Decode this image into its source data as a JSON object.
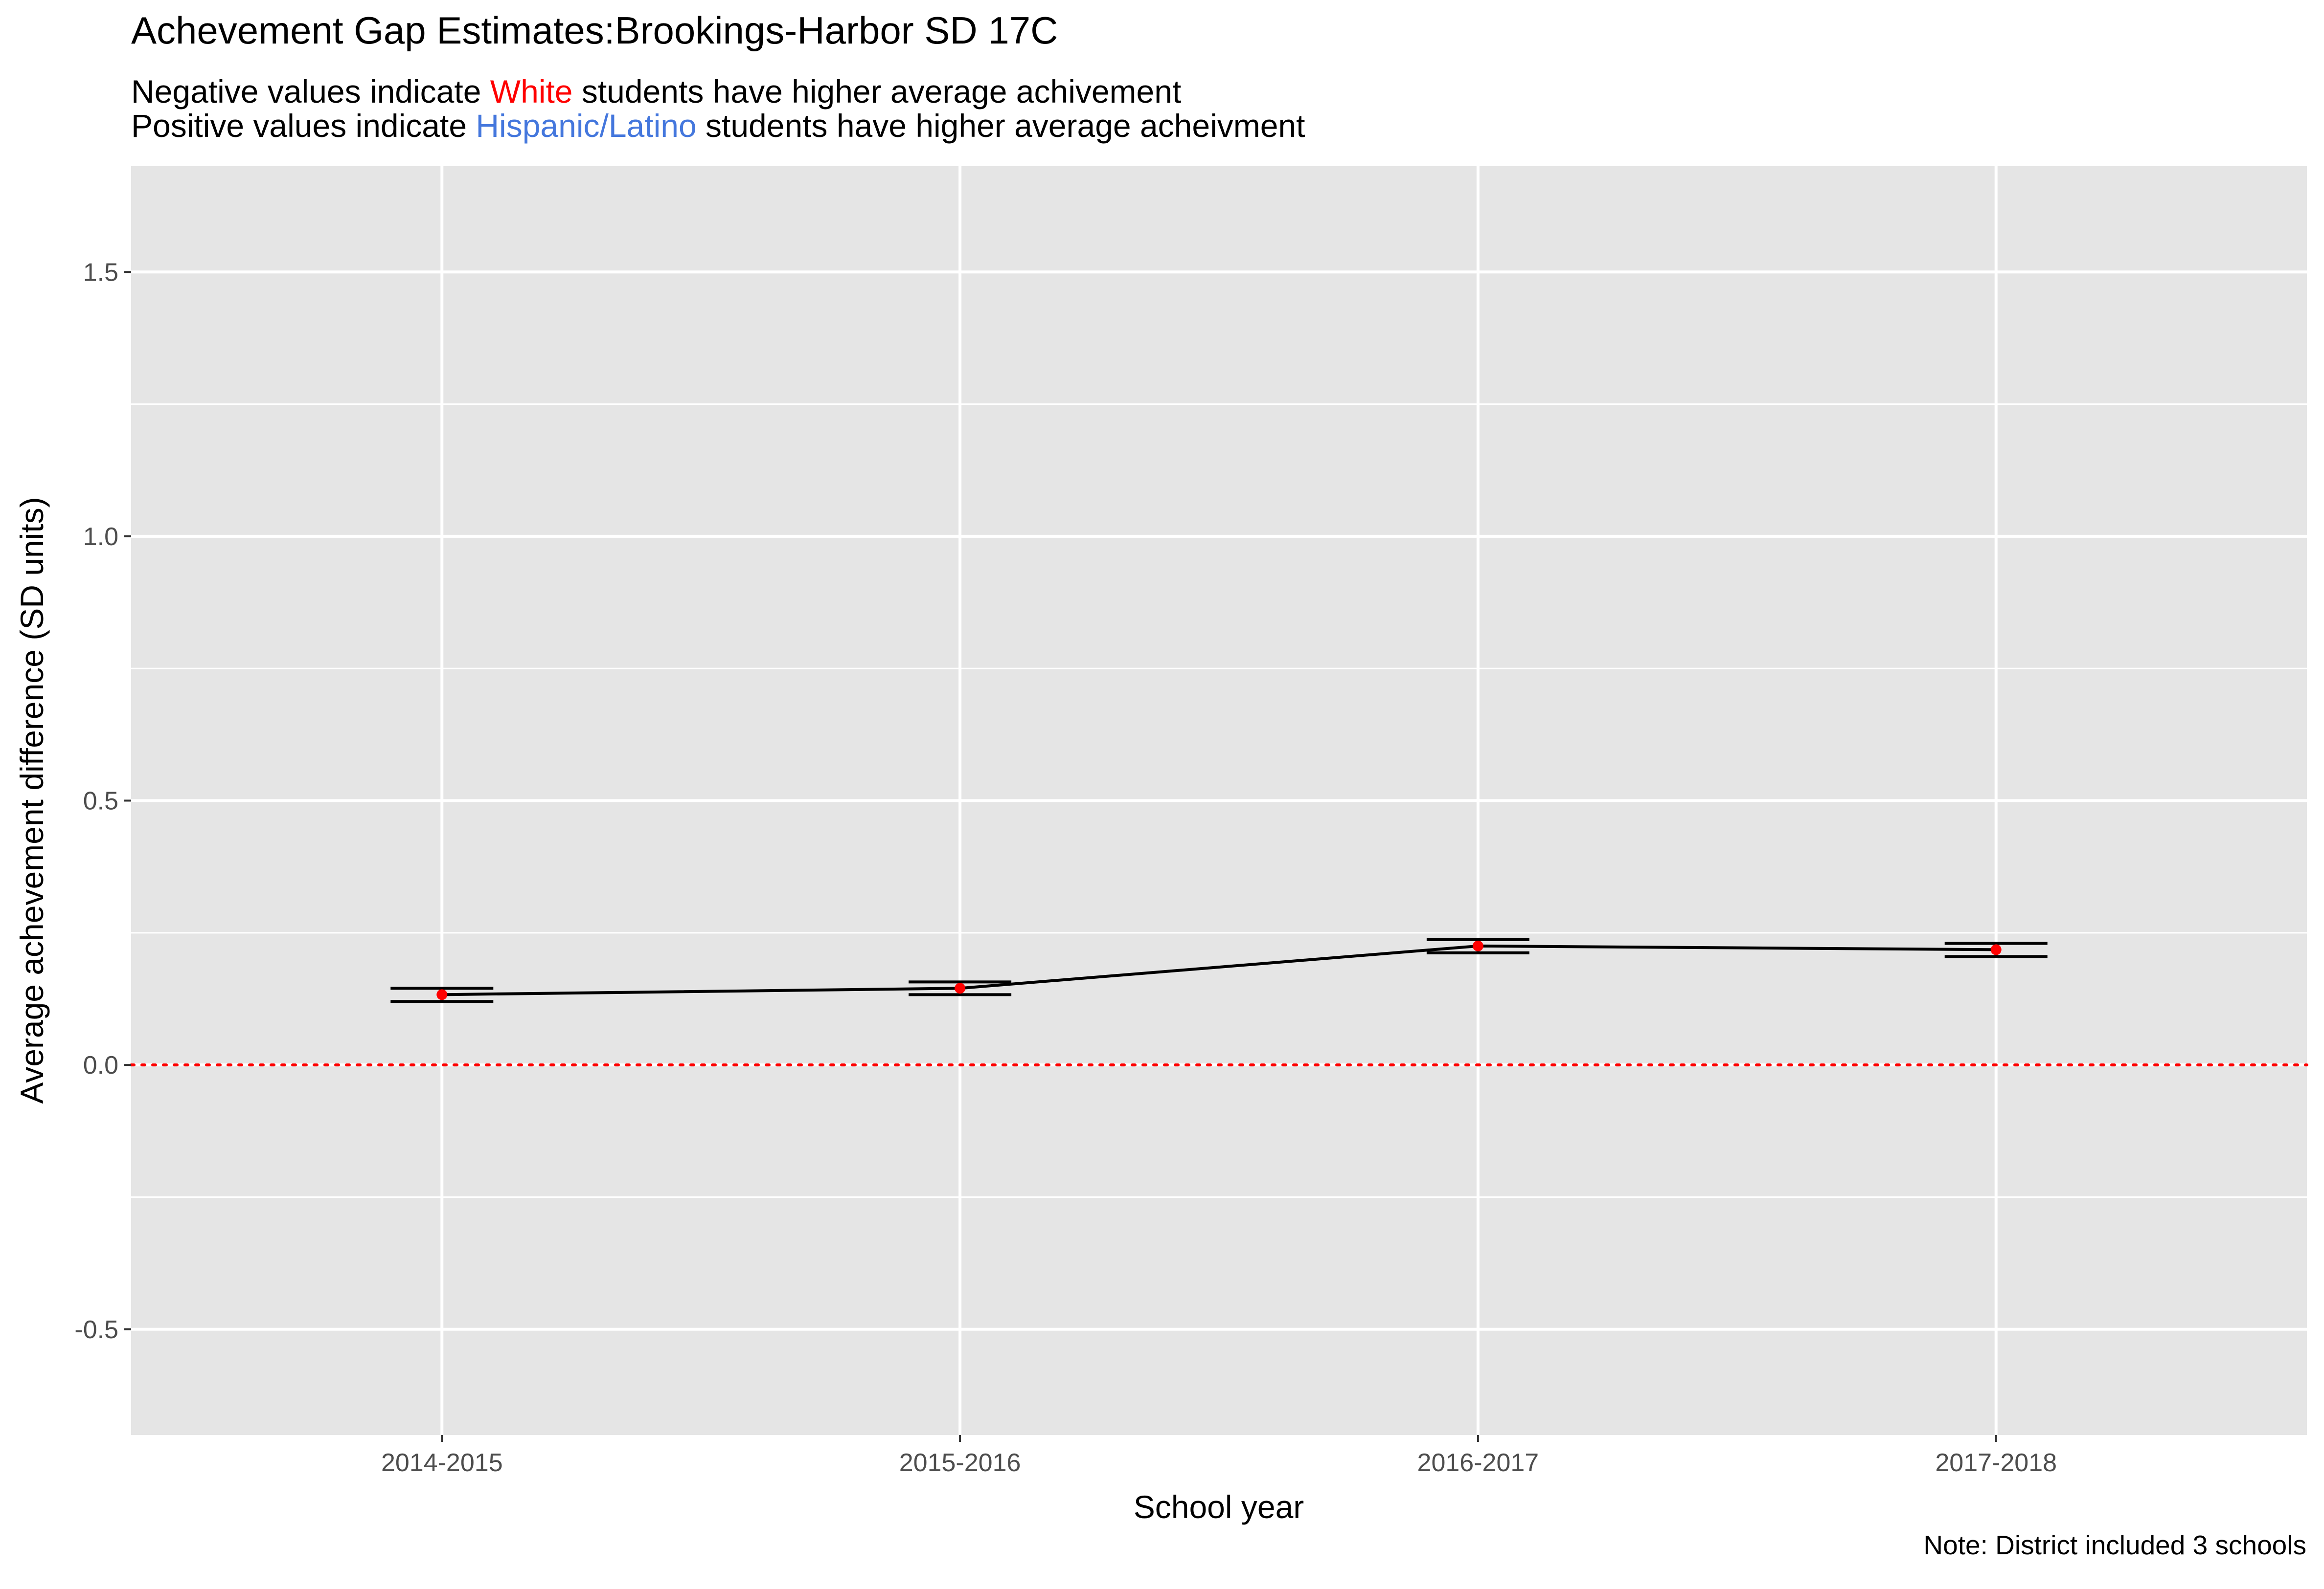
{
  "chart_data": {
    "type": "line",
    "title": "Achevement Gap Estimates:Brookings-Harbor SD 17C",
    "subtitle_line1": {
      "prefix": "Negative values indicate ",
      "highlight": "White",
      "suffix": " students have higher average achivement"
    },
    "subtitle_line2": {
      "prefix": "Positive values indicate ",
      "highlight": "Hispanic/Latino",
      "suffix": " students have higher average acheivment"
    },
    "xlabel": "School year",
    "ylabel": "Average achevement difference (SD units)",
    "caption": "Note: District included 3 schools",
    "categories": [
      "2014-2015",
      "2015-2016",
      "2016-2017",
      "2017-2018"
    ],
    "values": [
      0.133,
      0.145,
      0.225,
      0.218
    ],
    "error_low": [
      0.12,
      0.133,
      0.212,
      0.205
    ],
    "error_high": [
      0.145,
      0.157,
      0.237,
      0.23
    ],
    "ylim": [
      -0.7,
      1.7
    ],
    "yticks": [
      -0.5,
      0.0,
      0.5,
      1.0,
      1.5
    ],
    "ytick_labels": [
      "-0.5",
      "0.0",
      "0.5",
      "1.0",
      "1.5"
    ],
    "reference_line": 0,
    "grid": true,
    "colors": {
      "panel": "#e5e5e5",
      "grid": "#ffffff",
      "line": "#000000",
      "point": "#ff0000",
      "reference": "#ff0000",
      "white_highlight": "#ff0000",
      "hispanic_highlight": "#4477dd"
    }
  }
}
